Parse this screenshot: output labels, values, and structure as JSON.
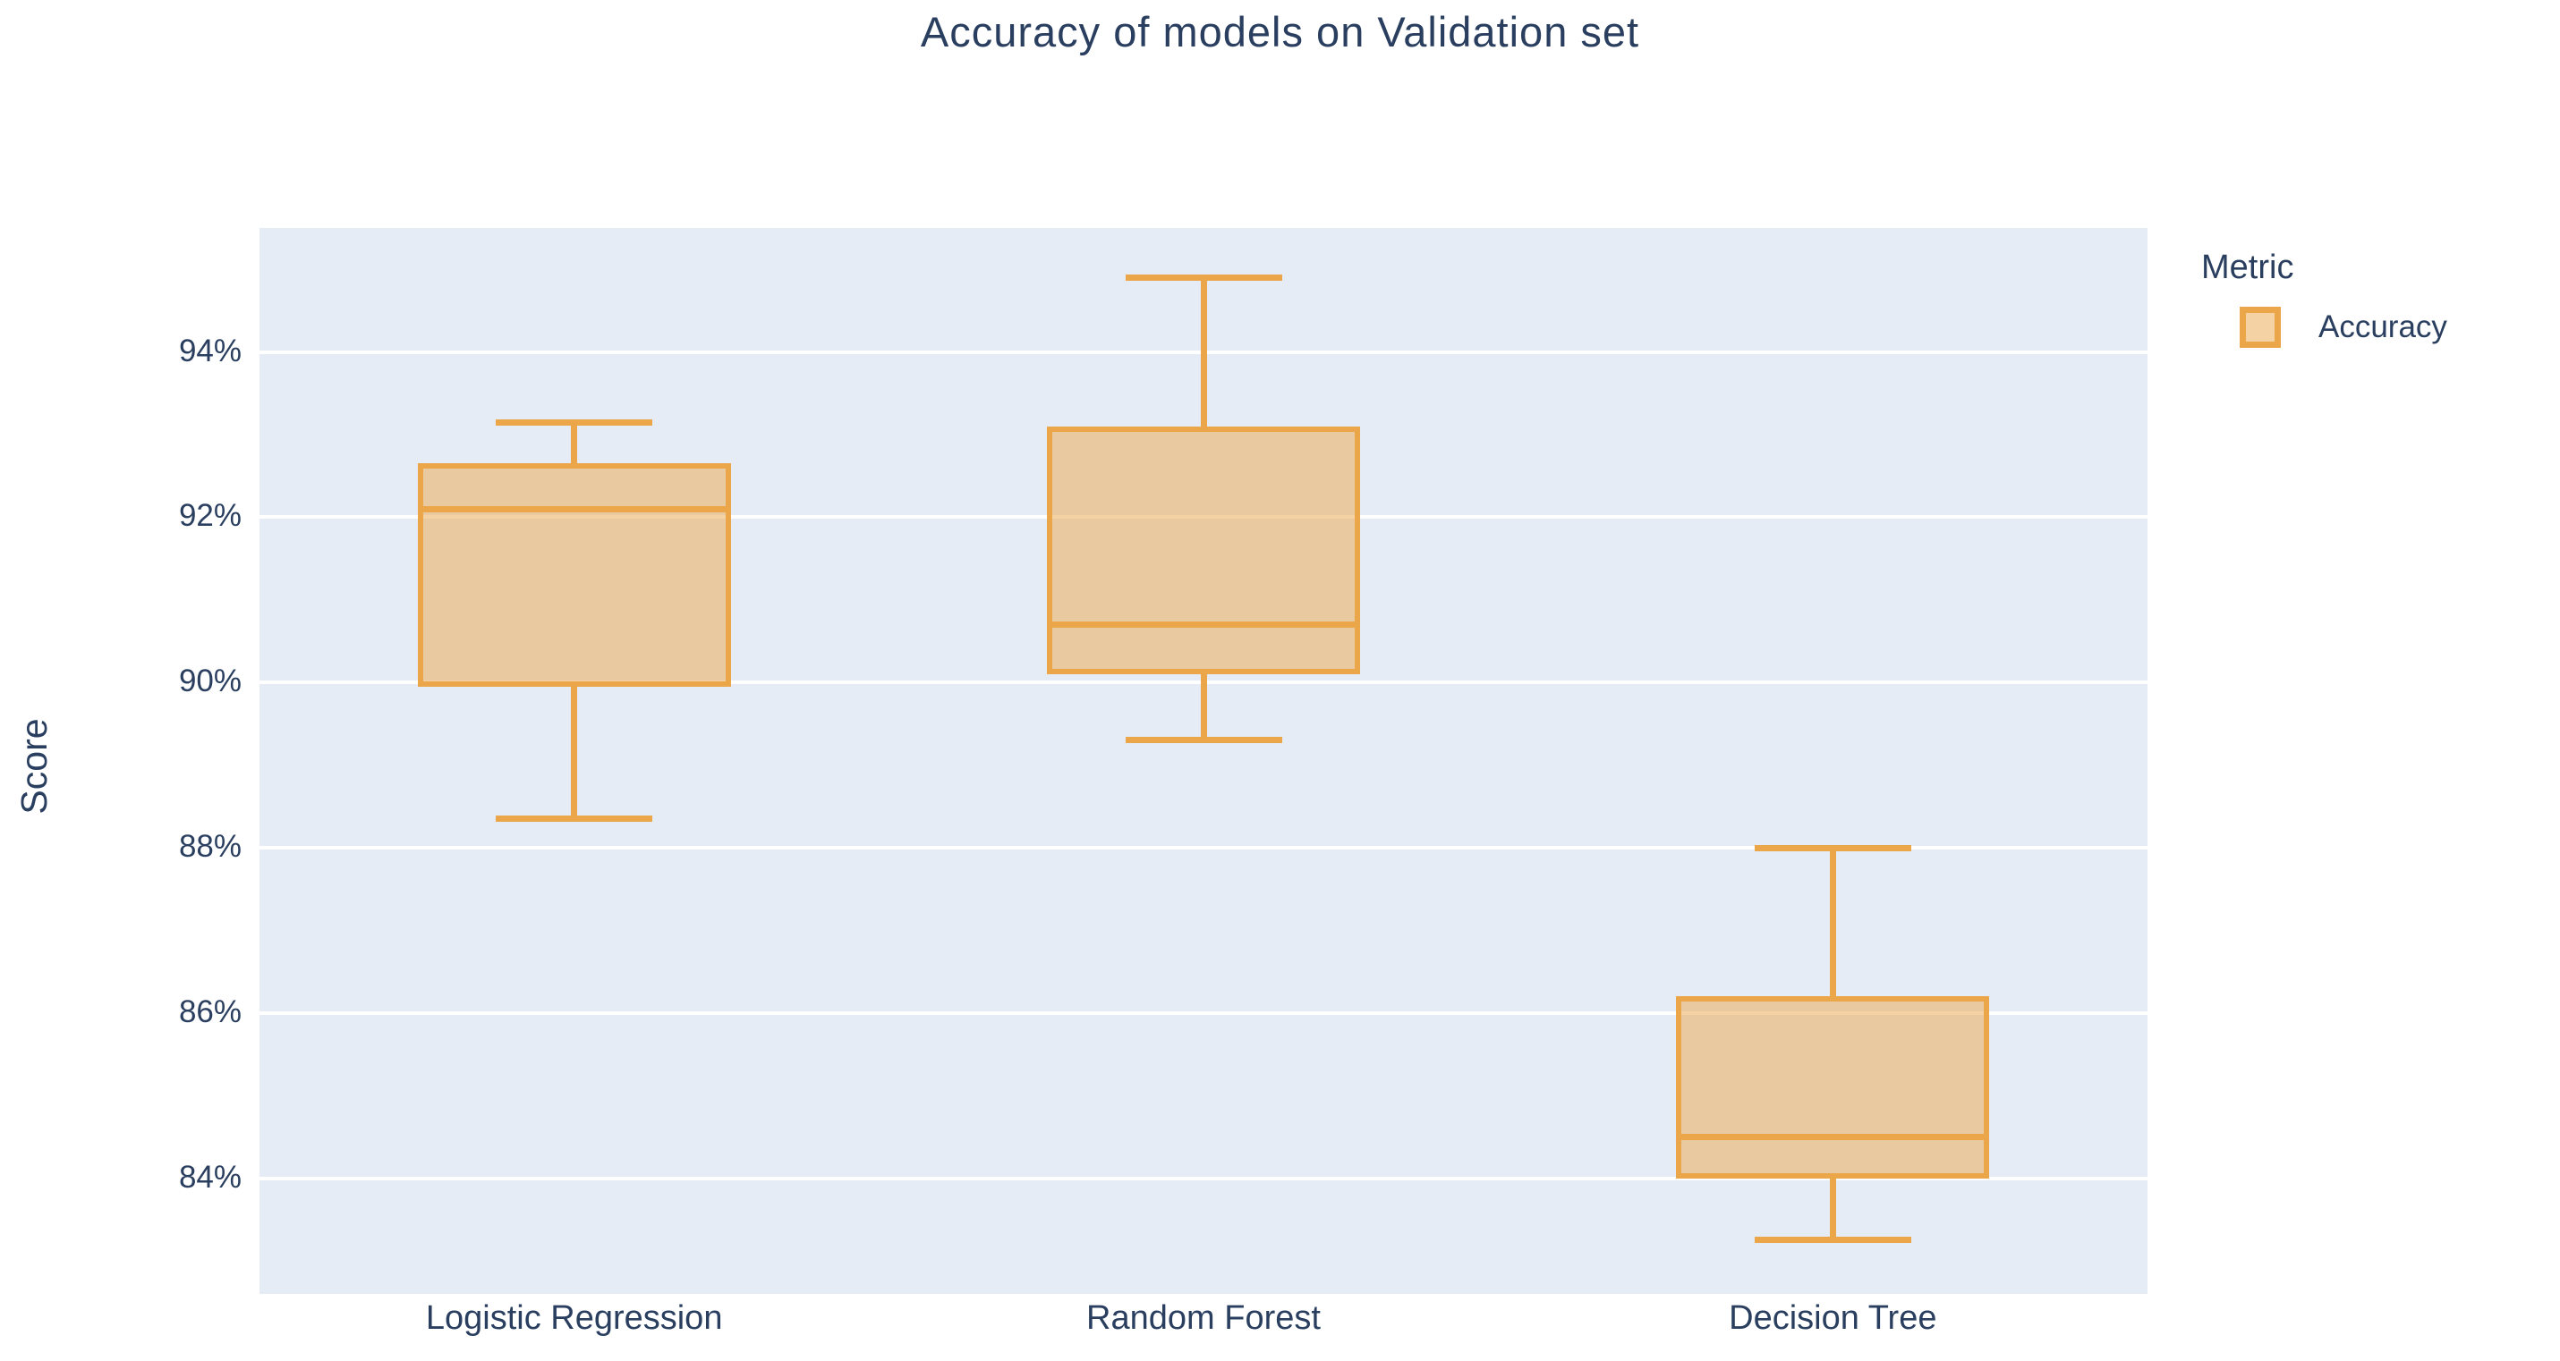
{
  "title": "Accuracy of models on Validation set",
  "colors": {
    "text": "#2a3f5f",
    "plot_bg": "#e5ecf6",
    "grid": "#ffffff",
    "box_line": "#eba64a",
    "box_fill": "rgba(235,166,74,0.5)"
  },
  "legend": {
    "title": "Metric",
    "items": [
      {
        "label": "Accuracy"
      }
    ]
  },
  "chart_data": {
    "type": "box",
    "title": "Accuracy of models on Validation set",
    "xlabel": "",
    "ylabel": "Score",
    "legend_title": "Metric",
    "legend_position": "right",
    "grid": true,
    "categories": [
      "Logistic Regression",
      "Random Forest",
      "Decision Tree"
    ],
    "y_ticks": [
      "84%",
      "86%",
      "88%",
      "90%",
      "92%",
      "94%"
    ],
    "y_tick_values": [
      84,
      86,
      88,
      90,
      92,
      94
    ],
    "ylim": [
      82.6,
      95.5
    ],
    "unit": "%",
    "series": [
      {
        "name": "Accuracy",
        "boxes": [
          {
            "category": "Logistic Regression",
            "min": 88.35,
            "q1": 89.95,
            "median": 92.1,
            "q3": 92.65,
            "max": 93.15
          },
          {
            "category": "Random Forest",
            "min": 89.3,
            "q1": 90.1,
            "median": 90.7,
            "q3": 93.1,
            "max": 94.9
          },
          {
            "category": "Decision Tree",
            "min": 83.25,
            "q1": 84.0,
            "median": 84.5,
            "q3": 86.2,
            "max": 88.0
          }
        ]
      }
    ]
  }
}
